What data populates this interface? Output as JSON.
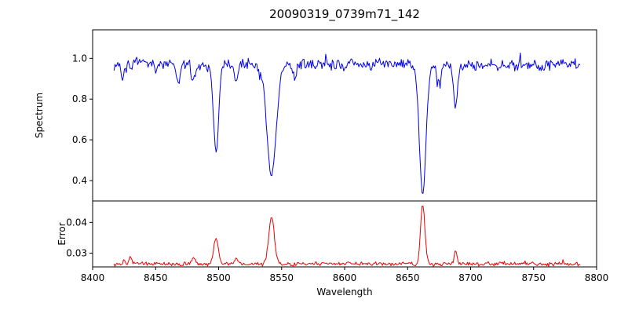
{
  "chart_data": {
    "type": "line",
    "title": "20090319_0739m71_142",
    "xlabel": "Wavelength",
    "x_range": [
      8400,
      8800
    ],
    "x_data_range": [
      8417,
      8787
    ],
    "sample_step": 0.75,
    "x_ticks": [
      {
        "value": 8400,
        "label": "8400"
      },
      {
        "value": 8450,
        "label": "8450"
      },
      {
        "value": 8500,
        "label": "8500"
      },
      {
        "value": 8550,
        "label": "8550"
      },
      {
        "value": 8600,
        "label": "8600"
      },
      {
        "value": 8650,
        "label": "8650"
      },
      {
        "value": 8700,
        "label": "8700"
      },
      {
        "value": 8750,
        "label": "8750"
      },
      {
        "value": 8800,
        "label": "8800"
      }
    ],
    "legend": "none",
    "grid": false,
    "panels": [
      {
        "id": "spectrum",
        "ylabel": "Spectrum",
        "ylim": [
          0.3,
          1.14
        ],
        "y_ticks": [
          {
            "value": 0.4,
            "label": "0.4"
          },
          {
            "value": 0.6,
            "label": "0.6"
          },
          {
            "value": 0.8,
            "label": "0.8"
          },
          {
            "value": 1.0,
            "label": "1.0"
          }
        ],
        "line_color": "#0000ee",
        "baseline": 0.97,
        "noise_amplitude": 0.018,
        "noise_seed": 7,
        "features": [
          {
            "center": 8498.0,
            "amplitude": -0.44,
            "sigma": 2.0
          },
          {
            "center": 8542.0,
            "amplitude": -0.54,
            "sigma": 3.8
          },
          {
            "center": 8662.0,
            "amplitude": -0.64,
            "sigma": 2.6
          },
          {
            "center": 8688.0,
            "amplitude": -0.22,
            "sigma": 1.5
          },
          {
            "center": 8675.0,
            "amplitude": -0.1,
            "sigma": 1.4
          },
          {
            "center": 8468.0,
            "amplitude": -0.1,
            "sigma": 1.5
          },
          {
            "center": 8480.0,
            "amplitude": -0.08,
            "sigma": 1.4
          },
          {
            "center": 8514.0,
            "amplitude": -0.09,
            "sigma": 1.5
          },
          {
            "center": 8424.0,
            "amplitude": -0.07,
            "sigma": 1.2
          },
          {
            "center": 8560.0,
            "amplitude": -0.06,
            "sigma": 1.4
          }
        ]
      },
      {
        "id": "error",
        "ylabel": "Error",
        "ylim": [
          0.0255,
          0.047
        ],
        "y_ticks": [
          {
            "value": 0.03,
            "label": "0.03"
          },
          {
            "value": 0.04,
            "label": "0.04"
          }
        ],
        "line_color": "#ee0000",
        "baseline": 0.0265,
        "noise_amplitude": 0.0004,
        "noise_seed": 13,
        "features": [
          {
            "center": 8498.0,
            "amplitude": 0.0085,
            "sigma": 1.8
          },
          {
            "center": 8542.0,
            "amplitude": 0.0155,
            "sigma": 2.2
          },
          {
            "center": 8662.0,
            "amplitude": 0.0195,
            "sigma": 1.7
          },
          {
            "center": 8688.0,
            "amplitude": 0.004,
            "sigma": 1.2
          },
          {
            "center": 8480.0,
            "amplitude": 0.0018,
            "sigma": 1.4
          },
          {
            "center": 8514.0,
            "amplitude": 0.0015,
            "sigma": 1.4
          },
          {
            "center": 8430.0,
            "amplitude": 0.0022,
            "sigma": 1.2
          },
          {
            "center": 8425.0,
            "amplitude": 0.0015,
            "sigma": 1.0
          }
        ]
      }
    ]
  }
}
